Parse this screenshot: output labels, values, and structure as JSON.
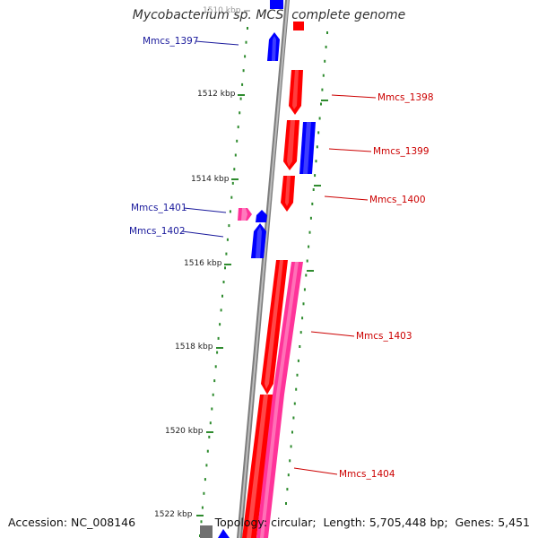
{
  "title": "Mycobacterium sp. MCS, complete genome",
  "footer": {
    "accession_label": "Accession:",
    "accession": "NC_008146",
    "topology_label": "Topology:",
    "topology": "circular",
    "length_label": "Length:",
    "length": "5,705,448 bp",
    "genes_label": "Genes:",
    "genes": "5,451"
  },
  "colors": {
    "forward_gene": "#0000ff",
    "reverse_gene": "#ff0000",
    "rna_gene": "#ff3399",
    "other_gene": "#707070",
    "forward_label": "#1a1a9c",
    "reverse_label": "#cc0000",
    "backbone": "#808080",
    "tick": "#2e8b2e"
  },
  "ticks": [
    "1510 kbp",
    "1512 kbp",
    "1514 kbp",
    "1516 kbp",
    "1518 kbp",
    "1520 kbp",
    "1522 kbp"
  ],
  "genes": [
    {
      "name": "Mmcs_1397",
      "strand": "forward",
      "color": "blue"
    },
    {
      "name": "Mmcs_1398",
      "strand": "reverse",
      "color": "red"
    },
    {
      "name": "Mmcs_1399",
      "strand": "reverse",
      "color": "red"
    },
    {
      "name": "Mmcs_1400",
      "strand": "reverse",
      "color": "red"
    },
    {
      "name": "Mmcs_1401",
      "strand": "forward",
      "color": "pink"
    },
    {
      "name": "Mmcs_1402",
      "strand": "forward",
      "color": "blue"
    },
    {
      "name": "Mmcs_1403",
      "strand": "reverse",
      "color": "pink"
    },
    {
      "name": "Mmcs_1404",
      "strand": "reverse",
      "color": "red"
    }
  ]
}
